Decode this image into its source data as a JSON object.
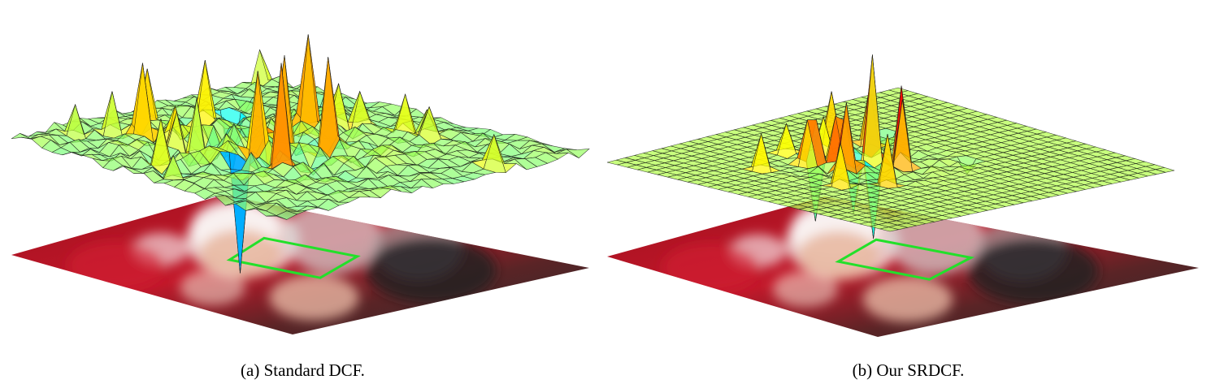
{
  "figure": {
    "panels": [
      {
        "caption": "(a) Standard DCF.",
        "surface": "noisy-response",
        "colors": {
          "face_box": "#22e02a",
          "mesh_edge": "#1a1a1a"
        }
      },
      {
        "caption": "(b) Our SRDCF.",
        "surface": "flat-response-central-peaks",
        "colors": {
          "face_box": "#22e02a",
          "mesh_edge": "#1a1a1a"
        }
      }
    ]
  }
}
